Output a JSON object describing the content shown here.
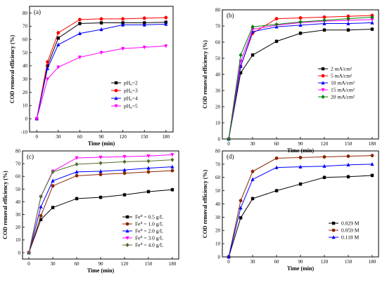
{
  "chart_data": [
    {
      "type": "line",
      "panel_label": "(a)",
      "xlabel": "Time (min)",
      "ylabel": "COD removal efficiency (%)",
      "xlim": [
        -10,
        190
      ],
      "ylim": [
        -10,
        85
      ],
      "xticks": [
        0,
        30,
        60,
        90,
        120,
        150,
        180
      ],
      "yticks": [
        -10,
        0,
        10,
        20,
        30,
        40,
        50,
        60,
        70,
        80
      ],
      "x": [
        0,
        15,
        30,
        60,
        90,
        120,
        150,
        180
      ],
      "legend_position": "center-right",
      "series": [
        {
          "name": "pH₀=2",
          "color": "#000000",
          "marker": "square",
          "values": [
            0,
            40,
            61,
            72,
            72.5,
            72.5,
            72.5,
            73
          ]
        },
        {
          "name": "pH₀=3",
          "color": "#ff0000",
          "marker": "circle",
          "values": [
            0,
            43,
            65,
            75,
            75.5,
            75.5,
            76,
            76.5
          ]
        },
        {
          "name": "pH₀=4",
          "color": "#0000ff",
          "marker": "triangle",
          "values": [
            0,
            38,
            56,
            64.5,
            67.5,
            71,
            71,
            71.5
          ]
        },
        {
          "name": "pH₀=5",
          "color": "#ff00ff",
          "marker": "triangle-down",
          "values": [
            0,
            30,
            39,
            46.5,
            50,
            53,
            54,
            55
          ]
        }
      ]
    },
    {
      "type": "line",
      "panel_label": "(b)",
      "xlabel": "Time (min)",
      "ylabel": "COD removal efficiency (%)",
      "xlim": [
        -8,
        188
      ],
      "ylim": [
        0,
        80
      ],
      "xticks": [
        0,
        30,
        60,
        90,
        120,
        150,
        180
      ],
      "yticks": [
        0,
        10,
        20,
        30,
        40,
        50,
        60,
        70,
        80
      ],
      "x": [
        0,
        15,
        30,
        60,
        90,
        120,
        150,
        180
      ],
      "legend_position": "center-right",
      "series": [
        {
          "name": "2 mA/cm²",
          "color": "#000000",
          "marker": "square",
          "values": [
            0,
            41,
            52,
            60.5,
            65.5,
            67.5,
            67.5,
            68
          ]
        },
        {
          "name": "5 mA/cm²",
          "color": "#ff0000",
          "marker": "circle",
          "values": [
            0,
            45,
            65.5,
            74.5,
            75,
            75.5,
            76,
            76.5
          ]
        },
        {
          "name": "10 mA/cm²",
          "color": "#0000ff",
          "marker": "triangle",
          "values": [
            0,
            45,
            66.5,
            69.5,
            70.5,
            71.5,
            71.5,
            72
          ]
        },
        {
          "name": "15 mA/cm²",
          "color": "#ff00ff",
          "marker": "triangle-down",
          "values": [
            0,
            48,
            68,
            70.5,
            72,
            73,
            73.5,
            74
          ]
        },
        {
          "name": "20 mA/cm²",
          "color": "#008000",
          "marker": "diamond",
          "values": [
            0,
            52,
            69.5,
            71,
            72.5,
            73.5,
            74.5,
            75.5
          ]
        }
      ]
    },
    {
      "type": "line",
      "panel_label": "(c)",
      "xlabel": "Time (min)",
      "ylabel": "COD removal efficiency (%)",
      "xlim": [
        -8,
        188
      ],
      "ylim": [
        -5,
        80
      ],
      "xticks": [
        0,
        30,
        60,
        90,
        120,
        150,
        180
      ],
      "yticks": [
        0,
        10,
        20,
        30,
        40,
        50,
        60,
        70,
        80
      ],
      "x": [
        0,
        15,
        30,
        60,
        90,
        120,
        150,
        180
      ],
      "legend_position": "bottom-right",
      "series": [
        {
          "name": "Fe⁰ = 0.5 g/L",
          "color": "#000000",
          "marker": "square",
          "values": [
            0,
            26,
            35.5,
            42.5,
            43.5,
            45.5,
            48,
            49.5
          ]
        },
        {
          "name": "Fe⁰ = 1.0 g/L",
          "color": "#8b2500",
          "marker": "circle",
          "values": [
            0,
            29,
            52.5,
            60.5,
            61.5,
            62.5,
            63.5,
            64.5
          ]
        },
        {
          "name": "Fe⁰ = 2.0 g/L",
          "color": "#0000ff",
          "marker": "triangle",
          "values": [
            0,
            36,
            56.5,
            63.5,
            64,
            65,
            66.5,
            67.5
          ]
        },
        {
          "name": "Fe⁰ = 3.0 g/L",
          "color": "#ff00ff",
          "marker": "triangle-down",
          "values": [
            0,
            44,
            64,
            74.5,
            75,
            75.5,
            76,
            77
          ]
        },
        {
          "name": "Fe⁰ = 4.0 g/L",
          "color": "#556b2f",
          "marker": "diamond",
          "values": [
            0,
            44,
            63.5,
            69.5,
            70.5,
            71.5,
            72,
            73
          ]
        }
      ]
    },
    {
      "type": "line",
      "panel_label": "(d)",
      "xlabel": "Time (min)",
      "ylabel": "COD removal efficiency (%)",
      "xlim": [
        -8,
        188
      ],
      "ylim": [
        0,
        80
      ],
      "xticks": [
        0,
        30,
        60,
        90,
        120,
        150,
        180
      ],
      "yticks": [
        0,
        10,
        20,
        30,
        40,
        50,
        60,
        70,
        80
      ],
      "x": [
        0,
        15,
        30,
        60,
        90,
        120,
        150,
        180
      ],
      "legend_position": "center-right",
      "series": [
        {
          "name": "0.029 M",
          "color": "#000000",
          "marker": "square",
          "values": [
            0,
            29.5,
            44,
            50,
            55,
            60,
            60.5,
            61.5
          ]
        },
        {
          "name": "0.059 M",
          "color": "#8b2500",
          "marker": "circle",
          "values": [
            0,
            42.5,
            64.5,
            74.5,
            75,
            75.5,
            76,
            76.5
          ]
        },
        {
          "name": "0.118 M",
          "color": "#0000ff",
          "marker": "triangle",
          "values": [
            0,
            37,
            58.5,
            67.5,
            68,
            68.5,
            69.5,
            70
          ]
        }
      ]
    }
  ]
}
